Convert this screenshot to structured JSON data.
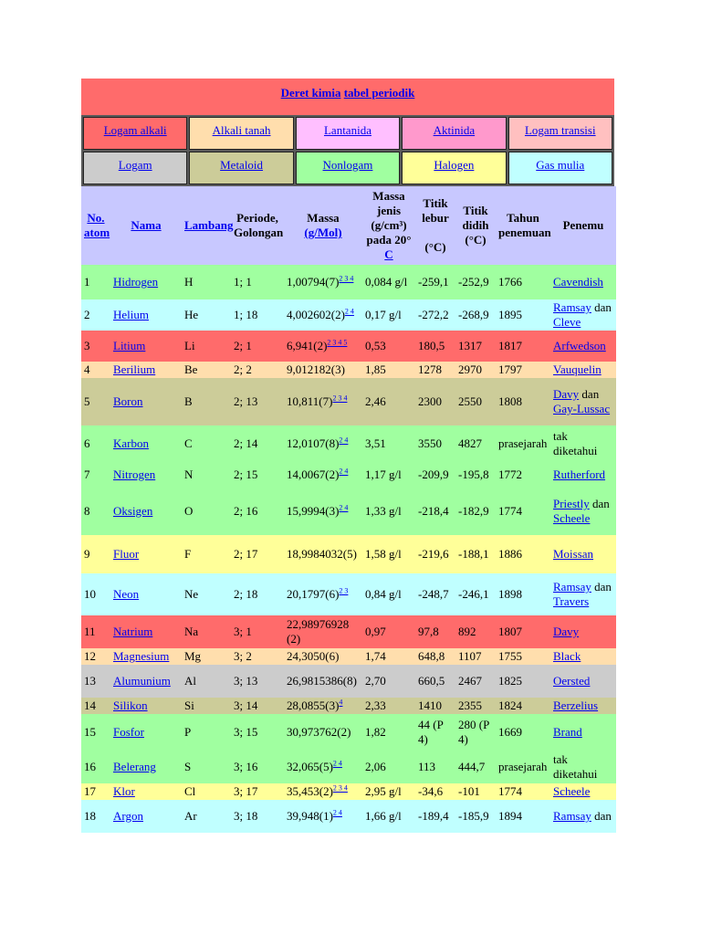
{
  "title": {
    "part1": "Deret kimia",
    "part2": "tabel periodik"
  },
  "legend": [
    [
      {
        "label": "Logam alkali",
        "color": "#ff6b6b"
      },
      {
        "label": "Alkali tanah",
        "color": "#ffdead"
      },
      {
        "label": "Lantanida",
        "color": "#ffbfff"
      },
      {
        "label": "Aktinida",
        "color": "#ff99cc"
      },
      {
        "label": "Logam transisi",
        "color": "#ffc0c0"
      }
    ],
    [
      {
        "label": "Logam",
        "color": "#cccccc"
      },
      {
        "label": "Metaloid",
        "color": "#cccc99"
      },
      {
        "label": "Nonlogam",
        "color": "#a0ffa0"
      },
      {
        "label": "Halogen",
        "color": "#ffff99"
      },
      {
        "label": "Gas mulia",
        "color": "#c0ffff"
      }
    ]
  ],
  "headers": {
    "no": "No. atom",
    "nama": "Nama",
    "lambang": "Lambang",
    "periode": "Periode, Golongan",
    "massa": "Massa",
    "massa_unit": "(g/Mol)",
    "jenis": "Massa jenis",
    "jenis_unit": "(g/cm³)",
    "jenis_cond": "pada 20°",
    "jenis_c": "C",
    "lebur": "Titik lebur",
    "lebur_unit": "(°C)",
    "didih": "Titik didih",
    "didih_unit": "(°C)",
    "tahun": "Tahun penemuan",
    "penemu": "Penemu"
  },
  "rows": [
    {
      "no": "1",
      "nama": "Hidrogen",
      "lambang": "H",
      "periode": "1; 1",
      "massa": "1,00794(7)",
      "fn": "2 3 4",
      "jenis": "0,084 g/l",
      "lebur": "-259,1",
      "didih": "-252,9",
      "tahun": "1766",
      "penemu": [
        "Cavendish"
      ],
      "color": "#a0ffa0"
    },
    {
      "no": "2",
      "nama": "Helium",
      "lambang": "He",
      "periode": "1; 18",
      "massa": "4,002602(2)",
      "fn": "2 4",
      "jenis": "0,17 g/l",
      "lebur": "-272,2",
      "didih": "-268,9",
      "tahun": "1895",
      "penemu": [
        "Ramsay",
        " dan ",
        "Cleve"
      ],
      "color": "#c0ffff"
    },
    {
      "no": "3",
      "nama": "Litium",
      "lambang": "Li",
      "periode": "2; 1",
      "massa": "6,941(2)",
      "fn": "2 3 4 5",
      "jenis": "0,53",
      "lebur": "180,5",
      "didih": "1317",
      "tahun": "1817",
      "penemu": [
        "Arfwedson"
      ],
      "color": "#ff6b6b"
    },
    {
      "no": "4",
      "nama": "Berilium",
      "lambang": "Be",
      "periode": "2; 2",
      "massa": "9,012182(3)",
      "fn": "",
      "jenis": "1,85",
      "lebur": "1278",
      "didih": "2970",
      "tahun": "1797",
      "penemu": [
        "Vauquelin"
      ],
      "color": "#ffdead"
    },
    {
      "no": "5",
      "nama": "Boron",
      "lambang": "B",
      "periode": "2; 13",
      "massa": "10,811(7)",
      "fn": "2 3 4",
      "jenis": "2,46",
      "lebur": "2300",
      "didih": "2550",
      "tahun": "1808",
      "penemu": [
        "Davy",
        " dan ",
        "Gay-Lussac"
      ],
      "color": "#cccc99"
    },
    {
      "no": "6",
      "nama": "Karbon",
      "lambang": "C",
      "periode": "2; 14",
      "massa": "12,0107(8)",
      "fn": "2 4",
      "jenis": "3,51",
      "lebur": "3550",
      "didih": "4827",
      "tahun": "prasejarah",
      "penemu": [
        "",
        "tak diketahui"
      ],
      "color": "#a0ffa0"
    },
    {
      "no": "7",
      "nama": "Nitrogen",
      "lambang": "N",
      "periode": "2; 15",
      "massa": "14,0067(2)",
      "fn": "2 4",
      "jenis": "1,17 g/l",
      "lebur": "-209,9",
      "didih": "-195,8",
      "tahun": "1772",
      "penemu": [
        "Rutherford"
      ],
      "color": "#a0ffa0"
    },
    {
      "no": "8",
      "nama": "Oksigen",
      "lambang": "O",
      "periode": "2; 16",
      "massa": "15,9994(3)",
      "fn": "2 4",
      "jenis": "1,33 g/l",
      "lebur": "-218,4",
      "didih": "-182,9",
      "tahun": "1774",
      "penemu": [
        "Priestly",
        " dan ",
        "Scheele"
      ],
      "color": "#a0ffa0"
    },
    {
      "no": "9",
      "nama": "Fluor",
      "lambang": "F",
      "periode": "2; 17",
      "massa": "18,9984032(5)",
      "fn": "",
      "jenis": "1,58 g/l",
      "lebur": "-219,6",
      "didih": "-188,1",
      "tahun": "1886",
      "penemu": [
        "Moissan"
      ],
      "color": "#ffff99"
    },
    {
      "no": "10",
      "nama": "Neon",
      "lambang": "Ne",
      "periode": "2; 18",
      "massa": "20,1797(6)",
      "fn": "2 3",
      "jenis": "0,84 g/l",
      "lebur": "-248,7",
      "didih": "-246,1",
      "tahun": "1898",
      "penemu": [
        "Ramsay",
        " dan ",
        "Travers"
      ],
      "color": "#c0ffff"
    },
    {
      "no": "11",
      "nama": "Natrium",
      "lambang": "Na",
      "periode": "3; 1",
      "massa": "22,98976928(2)",
      "fn": "",
      "jenis": "0,97",
      "lebur": "97,8",
      "didih": "892",
      "tahun": "1807",
      "penemu": [
        "Davy"
      ],
      "color": "#ff6b6b"
    },
    {
      "no": "12",
      "nama": "Magnesium",
      "lambang": "Mg",
      "periode": "3; 2",
      "massa": "24,3050(6)",
      "fn": "",
      "jenis": "1,74",
      "lebur": "648,8",
      "didih": "1107",
      "tahun": "1755",
      "penemu": [
        "Black"
      ],
      "color": "#ffdead"
    },
    {
      "no": "13",
      "nama": "Alumunium",
      "lambang": "Al",
      "periode": "3; 13",
      "massa": "26,9815386(8)",
      "fn": "",
      "jenis": "2,70",
      "lebur": "660,5",
      "didih": "2467",
      "tahun": "1825",
      "penemu": [
        "Oersted"
      ],
      "color": "#cccccc"
    },
    {
      "no": "14",
      "nama": "Silikon",
      "lambang": "Si",
      "periode": "3; 14",
      "massa": "28,0855(3)",
      "fn": "4",
      "jenis": "2,33",
      "lebur": "1410",
      "didih": "2355",
      "tahun": "1824",
      "penemu": [
        "Berzelius"
      ],
      "color": "#cccc99"
    },
    {
      "no": "15",
      "nama": "Fosfor",
      "lambang": "P",
      "periode": "3; 15",
      "massa": "30,973762(2)",
      "fn": "",
      "jenis": "1,82",
      "lebur": "44 (P4)",
      "didih": "280 (P4)",
      "tahun": "1669",
      "penemu": [
        "Brand"
      ],
      "color": "#a0ffa0"
    },
    {
      "no": "16",
      "nama": "Belerang",
      "lambang": "S",
      "periode": "3; 16",
      "massa": "32,065(5)",
      "fn": "2 4",
      "jenis": "2,06",
      "lebur": "113",
      "didih": "444,7",
      "tahun": "prasejarah",
      "penemu": [
        "",
        "tak diketahui"
      ],
      "color": "#a0ffa0"
    },
    {
      "no": "17",
      "nama": "Klor",
      "lambang": "Cl",
      "periode": "3; 17",
      "massa": "35,453(2)",
      "fn": "2 3 4",
      "jenis": "2,95 g/l",
      "lebur": "-34,6",
      "didih": "-101",
      "tahun": "1774",
      "penemu": [
        "Scheele"
      ],
      "color": "#ffff99"
    },
    {
      "no": "18",
      "nama": "Argon",
      "lambang": "Ar",
      "periode": "3; 18",
      "massa": "39,948(1)",
      "fn": "2 4",
      "jenis": "1,66 g/l",
      "lebur": "-189,4",
      "didih": "-185,9",
      "tahun": "1894",
      "penemu": [
        "Ramsay",
        " dan"
      ],
      "color": "#c0ffff"
    }
  ]
}
